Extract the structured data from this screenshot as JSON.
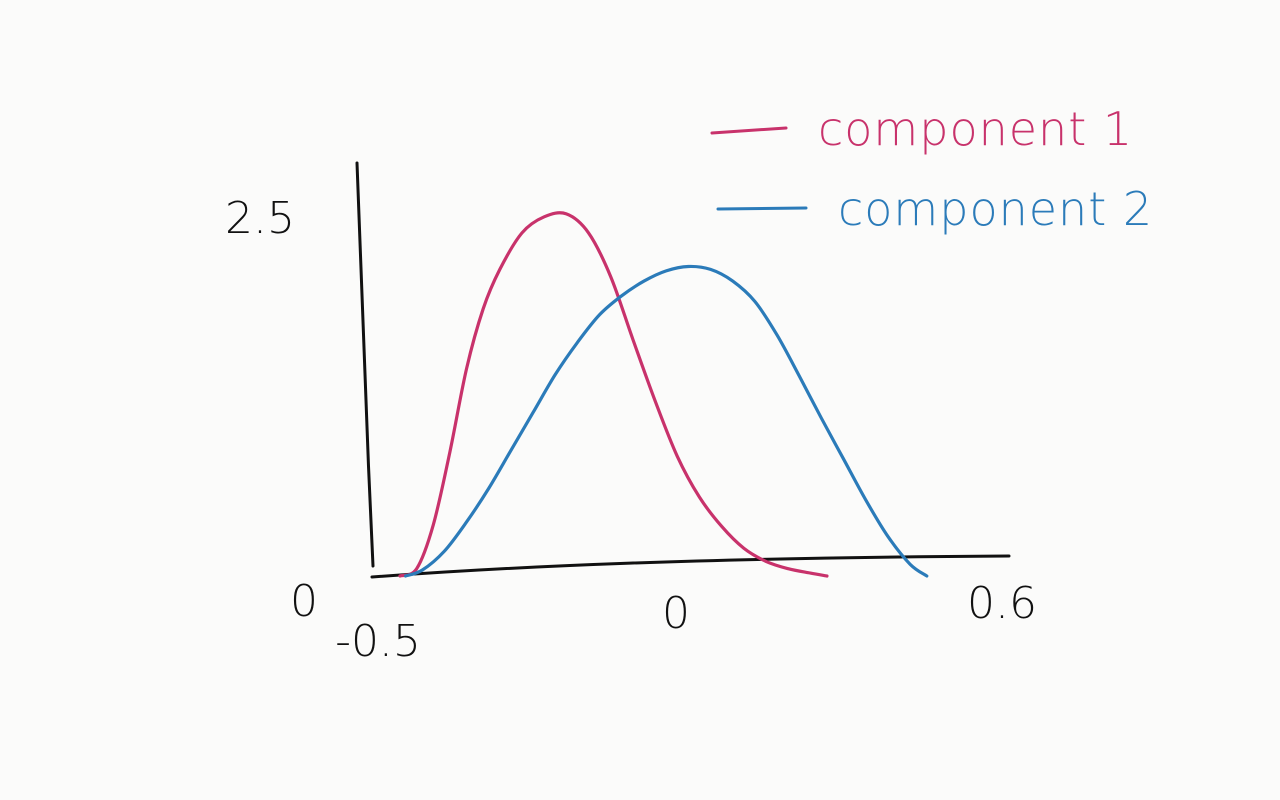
{
  "chart_data": {
    "type": "line",
    "title": "",
    "xlabel": "",
    "ylabel": "",
    "xlim": [
      -0.5,
      0.6
    ],
    "ylim": [
      0,
      2.5
    ],
    "x_tick_labels": [
      "-0.5",
      "0",
      "0.6"
    ],
    "y_tick_labels": [
      "0",
      "2.5"
    ],
    "grid": false,
    "legend_position": "top-right",
    "series": [
      {
        "name": "component 1",
        "color": "#c8326b",
        "points": [
          [
            -0.5,
            0.0
          ],
          [
            -0.47,
            0.05
          ],
          [
            -0.44,
            0.35
          ],
          [
            -0.41,
            0.85
          ],
          [
            -0.38,
            1.42
          ],
          [
            -0.35,
            1.83
          ],
          [
            -0.32,
            2.1
          ],
          [
            -0.28,
            2.35
          ],
          [
            -0.24,
            2.46
          ],
          [
            -0.2,
            2.48
          ],
          [
            -0.16,
            2.35
          ],
          [
            -0.12,
            2.05
          ],
          [
            -0.08,
            1.62
          ],
          [
            -0.04,
            1.2
          ],
          [
            0.0,
            0.82
          ],
          [
            0.04,
            0.54
          ],
          [
            0.08,
            0.34
          ],
          [
            0.12,
            0.19
          ],
          [
            0.16,
            0.1
          ],
          [
            0.2,
            0.05
          ],
          [
            0.24,
            0.02
          ],
          [
            0.27,
            0.0
          ]
        ]
      },
      {
        "name": "component 2",
        "color": "#2b7bb9",
        "points": [
          [
            -0.49,
            0.0
          ],
          [
            -0.46,
            0.04
          ],
          [
            -0.42,
            0.17
          ],
          [
            -0.38,
            0.37
          ],
          [
            -0.34,
            0.6
          ],
          [
            -0.3,
            0.86
          ],
          [
            -0.26,
            1.12
          ],
          [
            -0.22,
            1.38
          ],
          [
            -0.18,
            1.6
          ],
          [
            -0.14,
            1.79
          ],
          [
            -0.1,
            1.92
          ],
          [
            -0.06,
            2.02
          ],
          [
            -0.02,
            2.09
          ],
          [
            0.02,
            2.12
          ],
          [
            0.06,
            2.1
          ],
          [
            0.1,
            2.02
          ],
          [
            0.14,
            1.88
          ],
          [
            0.18,
            1.65
          ],
          [
            0.22,
            1.37
          ],
          [
            0.26,
            1.08
          ],
          [
            0.3,
            0.8
          ],
          [
            0.34,
            0.52
          ],
          [
            0.38,
            0.27
          ],
          [
            0.42,
            0.08
          ],
          [
            0.45,
            0.0
          ]
        ]
      }
    ]
  }
}
